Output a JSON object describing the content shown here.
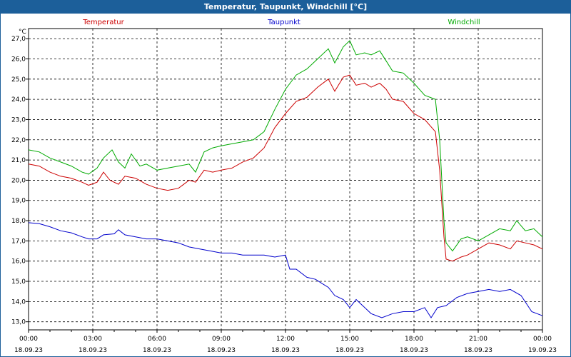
{
  "window": {
    "title": "Temperatur, Taupunkt, Windchill [°C]"
  },
  "colors": {
    "titlebar": "#1c5f9a",
    "temperatur": "#cc0000",
    "taupunkt": "#0000cc",
    "windchill": "#00aa00"
  },
  "chart_data": {
    "type": "line",
    "title": "Temperatur, Taupunkt, Windchill [°C]",
    "ylabel": "°C",
    "xlabel": "",
    "ylim": [
      12.6,
      27.5
    ],
    "yticks": [
      "27,0",
      "26,0",
      "25,0",
      "24,0",
      "23,0",
      "22,0",
      "21,0",
      "20,0",
      "19,0",
      "18,0",
      "17,0",
      "16,0",
      "15,0",
      "14,0",
      "13,0"
    ],
    "xlim": [
      0,
      24
    ],
    "xticks": [
      {
        "time": "00:00",
        "date": "18.09.23"
      },
      {
        "time": "03:00",
        "date": "18.09.23"
      },
      {
        "time": "06:00",
        "date": "18.09.23"
      },
      {
        "time": "09:00",
        "date": "18.09.23"
      },
      {
        "time": "12:00",
        "date": "18.09.23"
      },
      {
        "time": "15:00",
        "date": "18.09.23"
      },
      {
        "time": "18:00",
        "date": "18.09.23"
      },
      {
        "time": "21:00",
        "date": "18.09.23"
      },
      {
        "time": "00:00",
        "date": "19.09.23"
      }
    ],
    "grid": true,
    "legend_position": "top",
    "series": [
      {
        "name": "Temperatur",
        "color": "#cc0000",
        "points": [
          [
            0,
            20.8
          ],
          [
            0.5,
            20.7
          ],
          [
            1,
            20.4
          ],
          [
            1.5,
            20.2
          ],
          [
            2,
            20.1
          ],
          [
            2.5,
            19.9
          ],
          [
            2.8,
            19.75
          ],
          [
            3.2,
            19.9
          ],
          [
            3.5,
            20.4
          ],
          [
            3.8,
            20.0
          ],
          [
            4.2,
            19.8
          ],
          [
            4.5,
            20.2
          ],
          [
            5,
            20.1
          ],
          [
            5.5,
            19.8
          ],
          [
            6,
            19.6
          ],
          [
            6.5,
            19.5
          ],
          [
            7,
            19.6
          ],
          [
            7.5,
            20.0
          ],
          [
            7.8,
            19.9
          ],
          [
            8.2,
            20.5
          ],
          [
            8.6,
            20.4
          ],
          [
            9,
            20.5
          ],
          [
            9.5,
            20.6
          ],
          [
            10,
            20.9
          ],
          [
            10.5,
            21.1
          ],
          [
            11,
            21.6
          ],
          [
            11.5,
            22.6
          ],
          [
            12,
            23.3
          ],
          [
            12.5,
            23.9
          ],
          [
            13,
            24.1
          ],
          [
            13.5,
            24.6
          ],
          [
            14,
            25.0
          ],
          [
            14.3,
            24.4
          ],
          [
            14.7,
            25.1
          ],
          [
            15,
            25.2
          ],
          [
            15.3,
            24.7
          ],
          [
            15.7,
            24.8
          ],
          [
            16,
            24.6
          ],
          [
            16.4,
            24.8
          ],
          [
            16.7,
            24.5
          ],
          [
            17,
            24.0
          ],
          [
            17.5,
            23.9
          ],
          [
            18,
            23.3
          ],
          [
            18.5,
            23.0
          ],
          [
            19,
            22.4
          ],
          [
            19.2,
            20.5
          ],
          [
            19.4,
            17.2
          ],
          [
            19.5,
            16.1
          ],
          [
            19.8,
            16.0
          ],
          [
            20.2,
            16.2
          ],
          [
            20.5,
            16.3
          ],
          [
            21,
            16.6
          ],
          [
            21.5,
            16.9
          ],
          [
            22,
            16.8
          ],
          [
            22.5,
            16.6
          ],
          [
            22.8,
            17.0
          ],
          [
            23.2,
            16.9
          ],
          [
            23.6,
            16.8
          ],
          [
            24,
            16.6
          ]
        ]
      },
      {
        "name": "Taupunkt",
        "color": "#0000cc",
        "points": [
          [
            0,
            17.9
          ],
          [
            0.5,
            17.85
          ],
          [
            1,
            17.7
          ],
          [
            1.5,
            17.5
          ],
          [
            2,
            17.4
          ],
          [
            2.5,
            17.2
          ],
          [
            2.8,
            17.1
          ],
          [
            3.2,
            17.1
          ],
          [
            3.5,
            17.3
          ],
          [
            4,
            17.35
          ],
          [
            4.2,
            17.55
          ],
          [
            4.5,
            17.3
          ],
          [
            5,
            17.2
          ],
          [
            5.5,
            17.1
          ],
          [
            6,
            17.1
          ],
          [
            6.5,
            17.0
          ],
          [
            7,
            16.9
          ],
          [
            7.5,
            16.7
          ],
          [
            8,
            16.6
          ],
          [
            8.5,
            16.5
          ],
          [
            9,
            16.4
          ],
          [
            9.5,
            16.4
          ],
          [
            10,
            16.3
          ],
          [
            10.5,
            16.3
          ],
          [
            11,
            16.3
          ],
          [
            11.5,
            16.2
          ],
          [
            12,
            16.3
          ],
          [
            12.2,
            15.6
          ],
          [
            12.5,
            15.6
          ],
          [
            13,
            15.2
          ],
          [
            13.4,
            15.1
          ],
          [
            13.7,
            14.9
          ],
          [
            14,
            14.7
          ],
          [
            14.3,
            14.3
          ],
          [
            14.7,
            14.1
          ],
          [
            15,
            13.7
          ],
          [
            15.3,
            14.1
          ],
          [
            15.6,
            13.8
          ],
          [
            16,
            13.4
          ],
          [
            16.5,
            13.2
          ],
          [
            17,
            13.4
          ],
          [
            17.5,
            13.5
          ],
          [
            18,
            13.5
          ],
          [
            18.5,
            13.7
          ],
          [
            18.8,
            13.2
          ],
          [
            19.1,
            13.7
          ],
          [
            19.5,
            13.8
          ],
          [
            20,
            14.2
          ],
          [
            20.5,
            14.4
          ],
          [
            21,
            14.5
          ],
          [
            21.5,
            14.6
          ],
          [
            22,
            14.5
          ],
          [
            22.5,
            14.6
          ],
          [
            23,
            14.3
          ],
          [
            23.5,
            13.5
          ],
          [
            24,
            13.3
          ]
        ]
      },
      {
        "name": "Windchill",
        "color": "#00aa00",
        "points": [
          [
            0,
            21.5
          ],
          [
            0.5,
            21.4
          ],
          [
            1,
            21.1
          ],
          [
            1.5,
            20.9
          ],
          [
            2,
            20.7
          ],
          [
            2.5,
            20.4
          ],
          [
            2.8,
            20.3
          ],
          [
            3.2,
            20.6
          ],
          [
            3.5,
            21.1
          ],
          [
            3.9,
            21.5
          ],
          [
            4.2,
            20.9
          ],
          [
            4.5,
            20.6
          ],
          [
            4.8,
            21.3
          ],
          [
            5.2,
            20.7
          ],
          [
            5.5,
            20.8
          ],
          [
            6,
            20.5
          ],
          [
            6.5,
            20.6
          ],
          [
            7,
            20.7
          ],
          [
            7.5,
            20.8
          ],
          [
            7.8,
            20.4
          ],
          [
            8.2,
            21.4
          ],
          [
            8.6,
            21.6
          ],
          [
            9,
            21.7
          ],
          [
            9.5,
            21.8
          ],
          [
            10,
            21.9
          ],
          [
            10.5,
            22.0
          ],
          [
            11,
            22.4
          ],
          [
            11.5,
            23.5
          ],
          [
            12,
            24.5
          ],
          [
            12.5,
            25.2
          ],
          [
            13,
            25.5
          ],
          [
            13.5,
            26.0
          ],
          [
            14,
            26.5
          ],
          [
            14.3,
            25.8
          ],
          [
            14.7,
            26.6
          ],
          [
            15,
            26.9
          ],
          [
            15.3,
            26.2
          ],
          [
            15.7,
            26.3
          ],
          [
            16,
            26.2
          ],
          [
            16.4,
            26.4
          ],
          [
            16.7,
            25.9
          ],
          [
            17,
            25.4
          ],
          [
            17.5,
            25.3
          ],
          [
            18,
            24.8
          ],
          [
            18.5,
            24.2
          ],
          [
            19,
            24.0
          ],
          [
            19.2,
            22.0
          ],
          [
            19.4,
            18.0
          ],
          [
            19.5,
            16.9
          ],
          [
            19.8,
            16.5
          ],
          [
            20.2,
            17.1
          ],
          [
            20.5,
            17.2
          ],
          [
            21,
            17.0
          ],
          [
            21.5,
            17.3
          ],
          [
            22,
            17.6
          ],
          [
            22.5,
            17.5
          ],
          [
            22.8,
            18.0
          ],
          [
            23.2,
            17.5
          ],
          [
            23.6,
            17.6
          ],
          [
            24,
            17.2
          ]
        ]
      }
    ]
  }
}
